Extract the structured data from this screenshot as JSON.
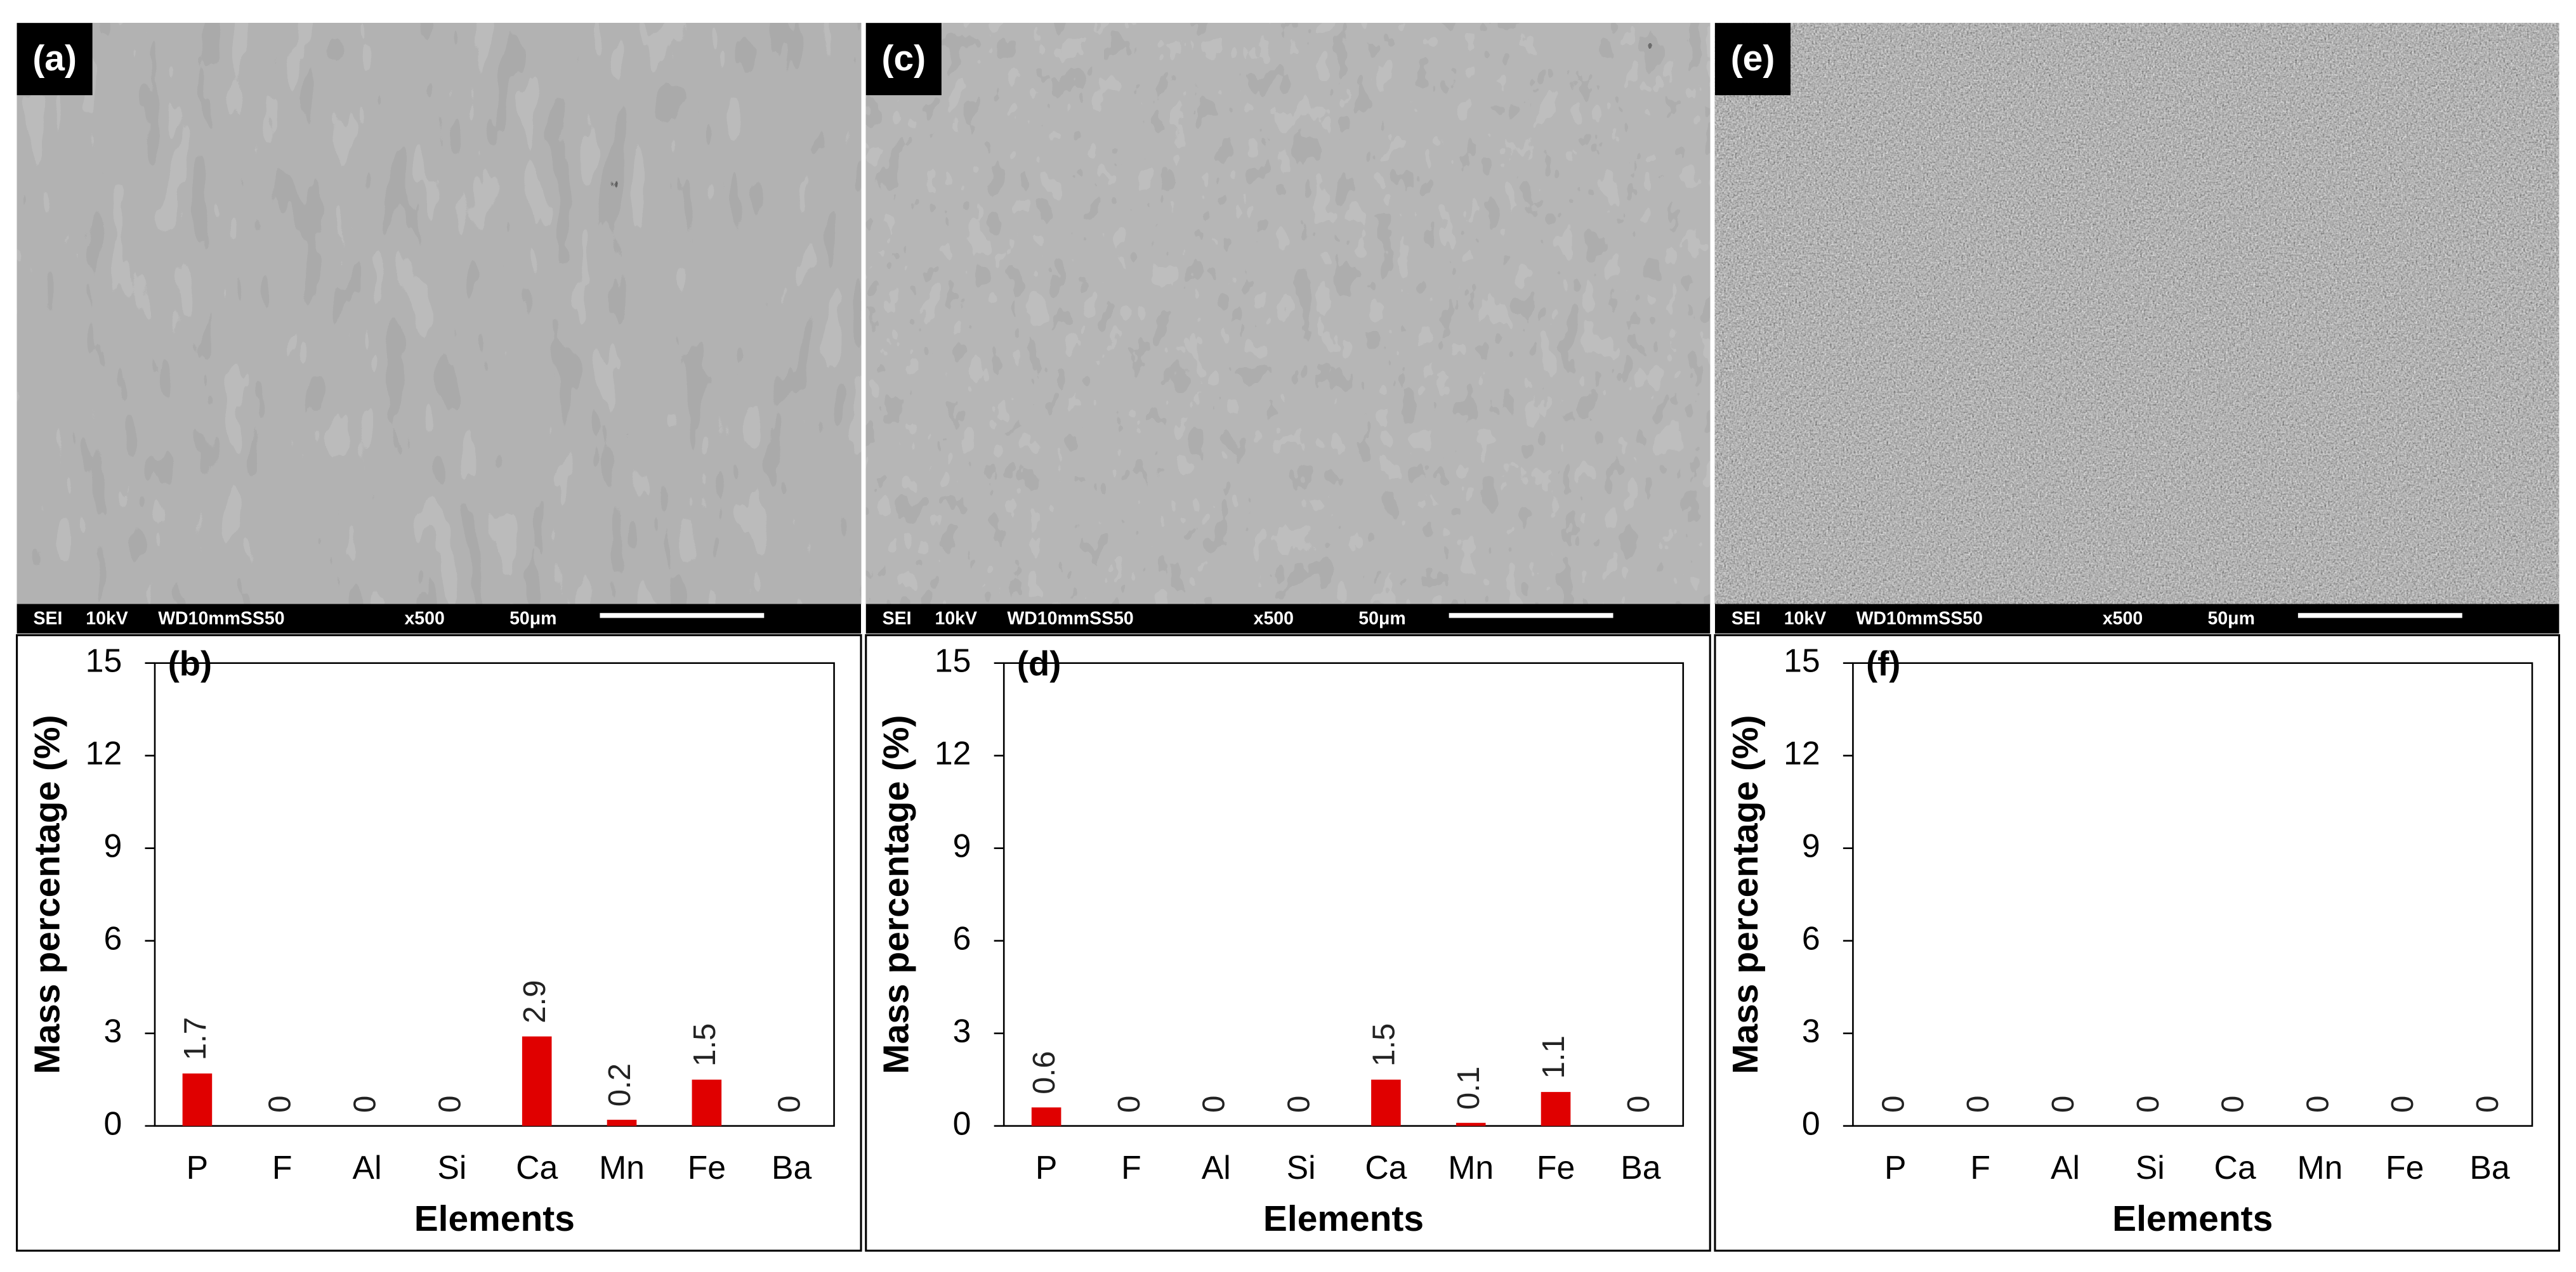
{
  "chart_data": [
    {
      "type": "bar",
      "panel_label": "(b)",
      "ylabel": "Mass percentage (%)",
      "xlabel": "Elements",
      "categories": [
        "P",
        "F",
        "Al",
        "Si",
        "Ca",
        "Mn",
        "Fe",
        "Ba"
      ],
      "values": [
        1.7,
        0,
        0,
        0,
        2.9,
        0.2,
        1.5,
        0
      ],
      "color": "#e00000",
      "ylim": [
        0,
        15
      ],
      "yticks": [
        0,
        3,
        6,
        9,
        12,
        15
      ]
    },
    {
      "type": "bar",
      "panel_label": "(d)",
      "ylabel": "Mass percentage (%)",
      "xlabel": "Elements",
      "categories": [
        "P",
        "F",
        "Al",
        "Si",
        "Ca",
        "Mn",
        "Fe",
        "Ba"
      ],
      "values": [
        0.6,
        0,
        0,
        0,
        1.5,
        0.1,
        1.1,
        0
      ],
      "color": "#e00000",
      "ylim": [
        0,
        15
      ],
      "yticks": [
        0,
        3,
        6,
        9,
        12,
        15
      ]
    },
    {
      "type": "bar",
      "panel_label": "(f)",
      "ylabel": "Mass percentage (%)",
      "xlabel": "Elements",
      "categories": [
        "P",
        "F",
        "Al",
        "Si",
        "Ca",
        "Mn",
        "Fe",
        "Ba"
      ],
      "values": [
        0,
        0,
        0,
        0,
        0,
        0,
        0,
        0
      ],
      "color": "#e00000",
      "ylim": [
        0,
        15
      ],
      "yticks": [
        0,
        3,
        6,
        9,
        12,
        15
      ]
    }
  ],
  "images": [
    {
      "label": "(a)",
      "info": [
        "SEI",
        "10kV",
        "WD10mmSS50",
        "x500",
        "50μm"
      ]
    },
    {
      "label": "(c)",
      "info": [
        "SEI",
        "10kV",
        "WD10mmSS50",
        "x500",
        "50μm"
      ]
    },
    {
      "label": "(e)",
      "info": [
        "SEI",
        "10kV",
        "WD10mmSS50",
        "x500",
        "50μm"
      ]
    }
  ]
}
